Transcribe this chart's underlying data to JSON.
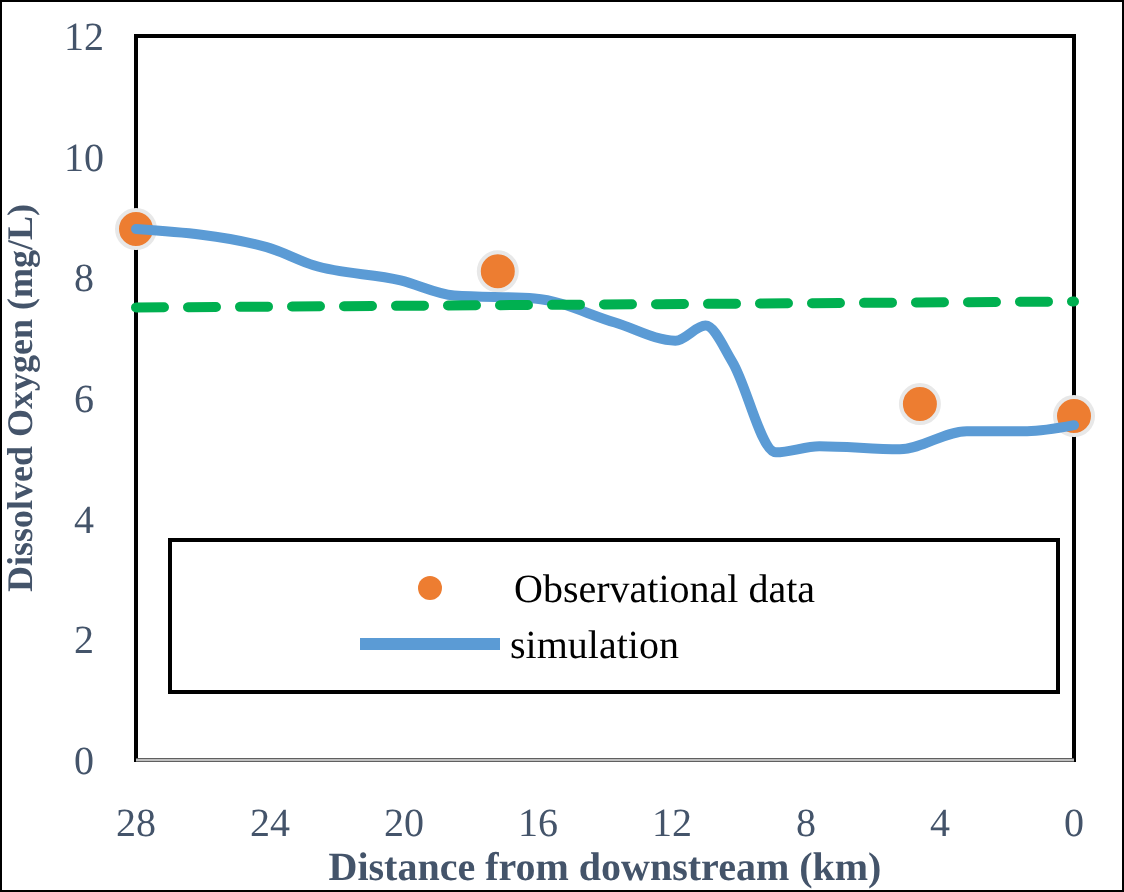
{
  "chart_data": {
    "type": "line",
    "xlabel": "Distance from downstream (km)",
    "ylabel": "Dissolved Oxygen (mg/L)",
    "xlim": [
      28,
      0
    ],
    "xticks": [
      28,
      24,
      20,
      16,
      12,
      8,
      4,
      0
    ],
    "ylim": [
      0,
      12
    ],
    "yticks": [
      0,
      2,
      4,
      6,
      8,
      10,
      12
    ],
    "grid": false,
    "legend": "bottom",
    "series": [
      {
        "name": "Observational data",
        "type": "scatter",
        "color": "#ed7d31",
        "marker": "circle",
        "x": [
          28,
          17.2,
          4.6,
          0
        ],
        "values": [
          8.8,
          8.1,
          5.9,
          5.7
        ]
      },
      {
        "name": "simulation",
        "color": "#5b9bd5",
        "line_style": "solid",
        "x": [
          28,
          24.1,
          22.7,
          20.1,
          18.5,
          16.1,
          13.7,
          11.9,
          11,
          10.2,
          8.9,
          7.6,
          5.2,
          3.2,
          1.4,
          0
        ],
        "values": [
          8.8,
          8.5,
          8.2,
          7.95,
          7.7,
          7.65,
          7.25,
          6.95,
          7.2,
          6.6,
          5.1,
          5.2,
          5.15,
          5.45,
          5.45,
          5.55
        ]
      },
      {
        "color": "#00b050",
        "line_style": "dashed",
        "x": [
          28,
          0
        ],
        "values": [
          7.5,
          7.6
        ]
      }
    ]
  }
}
